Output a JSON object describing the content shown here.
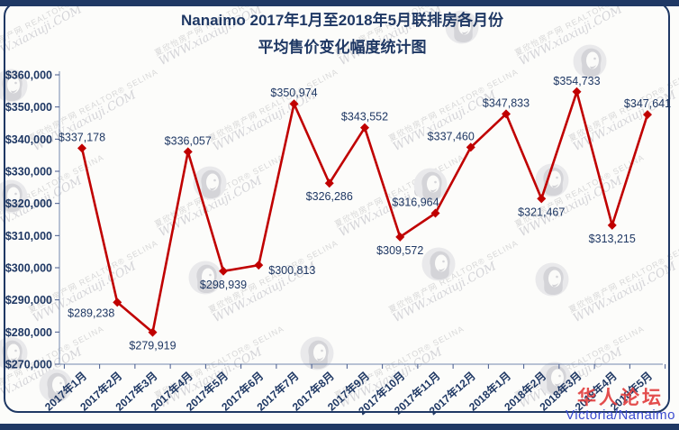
{
  "title": {
    "line1": "Nanaimo 2017年1月至2018年5月联排房各月份",
    "line2": "平均售价变化幅度统计图"
  },
  "chart_data": {
    "type": "line",
    "title": "Nanaimo 2017年1月至2018年5月联排房各月份 平均售价变化幅度统计图",
    "categories": [
      "2017年1月",
      "2017年2月",
      "2017年3月",
      "2017年4月",
      "2017年5月",
      "2017年6月",
      "2017年7月",
      "2017年8月",
      "2017年9月",
      "2017年10月",
      "2017年11月",
      "2017年12月",
      "2018年1月",
      "2018年2月",
      "2018年3月",
      "2018年4月",
      "2018年5月"
    ],
    "series": [
      {
        "values": [
          337178,
          289238,
          279919,
          336057,
          298939,
          300813,
          350974,
          326286,
          343552,
          309572,
          316964,
          337460,
          347833,
          321467,
          354733,
          313215,
          347641
        ],
        "color": "#C00000",
        "marker": "diamond"
      }
    ],
    "point_label_format": "$#,##0",
    "point_label_placements": [
      "above",
      "below-left",
      "below",
      "above",
      "below",
      "right",
      "above",
      "below",
      "above",
      "below",
      "above-left",
      "above-left",
      "above",
      "below",
      "above",
      "below",
      "above"
    ],
    "ylim": [
      270000,
      360000
    ],
    "ytick_step": 10000,
    "ytick_format": "$#,##0",
    "xlabel": "",
    "ylabel": "",
    "grid": false,
    "legend": "none",
    "axis_color": "#7388AE",
    "tick_color": "#44598C",
    "text_color": "#1F3864"
  },
  "watermark": {
    "line1": "夏欣怡房产网  REALTOR® SELINA",
    "line2": "WWW.xiaxiuji.COM",
    "logo_name": "xiaxinyi-head-silhouette"
  },
  "footer": {
    "forum_name": "华人论坛",
    "region_label": "Victoria/Nanaimo"
  },
  "colors": {
    "navy": "#1F3864",
    "line_red": "#C00000",
    "forum_red": "#E13B3B",
    "region_blue": "#3A4BD0",
    "watermark_grey": "#D8D8D8"
  }
}
